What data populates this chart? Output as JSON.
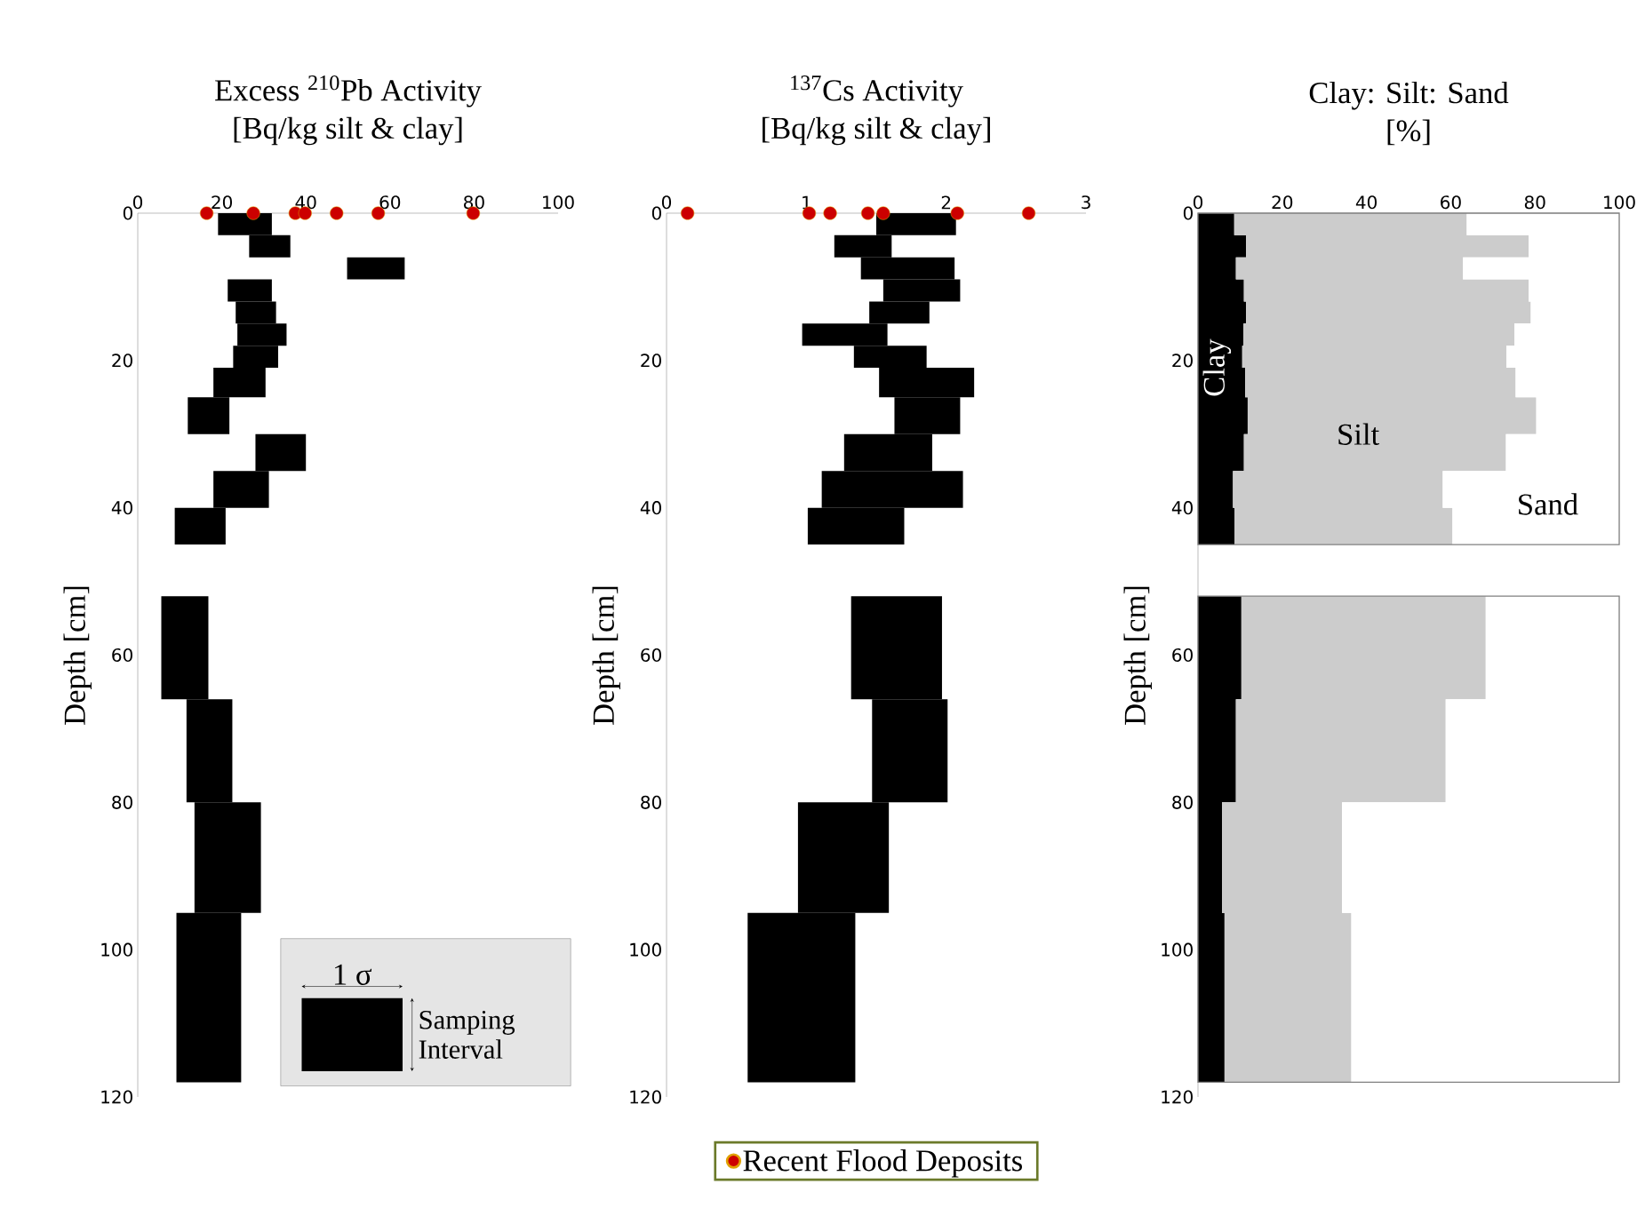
{
  "chart_data": [
    {
      "type": "bar",
      "orientation": "horizontal",
      "title": "Excess $^{210}$Pb Activity",
      "subtitle": "[Bq/kg silt & clay]",
      "ylabel": "Depth [cm]",
      "xlim": [
        0,
        100
      ],
      "ylim": [
        120,
        0
      ],
      "xticks": [
        0,
        20,
        40,
        60,
        80,
        100
      ],
      "yticks": [
        0,
        20,
        40,
        60,
        80,
        100,
        120
      ],
      "annotations": [
        "1 σ",
        "Samping Interval"
      ],
      "series": [
        {
          "color": "#000000",
          "x": [
            1.5,
            4.5,
            7.5,
            10.5,
            13.5,
            16.5,
            19.5,
            23,
            27.5,
            32.5,
            37.5,
            42.5,
            48.5,
            59,
            73,
            87.5,
            106.5
          ],
          "base": [
            19.1,
            26.5,
            49.8,
            21.4,
            23.3,
            23.7,
            22.7,
            18.0,
            11.9,
            28.0,
            18.0,
            8.8,
            null,
            5.6,
            11.6,
            13.5,
            9.2
          ],
          "values": [
            12.8,
            9.8,
            13.7,
            10.5,
            9.6,
            11.7,
            10.7,
            12.4,
            9.9,
            12.0,
            13.2,
            12.1,
            null,
            11.2,
            10.9,
            15.8,
            15.4
          ]
        },
        {
          "type": "scatter",
          "color": "#cc0000",
          "marker": "circle",
          "x": [
            0,
            0,
            0,
            0,
            0,
            0,
            0
          ],
          "values": [
            16.4,
            27.5,
            37.5,
            39.8,
            47.3,
            57.2,
            79.8
          ]
        }
      ]
    },
    {
      "type": "bar",
      "orientation": "horizontal",
      "title": "$^{137}$Cs Activity",
      "subtitle": "[Bq/kg silt & clay]",
      "ylabel": "Depth [cm]",
      "xlim": [
        0,
        3
      ],
      "ylim": [
        120,
        0
      ],
      "xticks": [
        0,
        1,
        2,
        3
      ],
      "yticks": [
        0,
        20,
        40,
        60,
        80,
        100,
        120
      ],
      "legend": "bottom",
      "series": [
        {
          "color": "#000000",
          "x": [
            1.5,
            4.5,
            7.5,
            10.5,
            13.5,
            16.5,
            19.5,
            23,
            27.5,
            32.5,
            37.5,
            42.5,
            48.5,
            59,
            73,
            87.5,
            106.5
          ],
          "base": [
            1.5,
            1.2,
            1.39,
            1.55,
            1.45,
            0.97,
            1.34,
            1.52,
            1.63,
            1.27,
            1.11,
            1.01,
            null,
            1.32,
            1.47,
            0.94,
            0.58
          ],
          "values": [
            0.57,
            0.41,
            0.67,
            0.55,
            0.43,
            0.61,
            0.52,
            0.68,
            0.47,
            0.63,
            1.01,
            0.69,
            null,
            0.65,
            0.54,
            0.65,
            0.77
          ]
        },
        {
          "type": "scatter",
          "name": "Recent Flood Deposits",
          "color": "#cc0000",
          "marker": "circle",
          "x": [
            0,
            0,
            0,
            0,
            0,
            0,
            0
          ],
          "values": [
            0.15,
            1.02,
            1.17,
            1.44,
            1.55,
            2.08,
            2.59
          ]
        }
      ]
    },
    {
      "type": "area",
      "title": "Clay: Silt: Sand",
      "subtitle": "[%]",
      "ylabel": "Depth [cm]",
      "stacked": true,
      "orientation": "horizontal",
      "xlim": [
        0,
        100
      ],
      "ylim": [
        120,
        0
      ],
      "xticks": [
        0,
        20,
        40,
        60,
        80,
        100
      ],
      "yticks": [
        0,
        20,
        40,
        60,
        80,
        100,
        120
      ],
      "x": [
        0,
        3,
        3,
        6,
        6,
        9,
        9,
        12,
        12,
        15,
        15,
        18,
        18,
        21,
        21,
        25,
        25,
        30,
        30,
        35,
        35,
        40,
        40,
        45,
        48.5,
        52,
        66,
        66,
        80,
        80,
        95,
        95,
        118
      ],
      "series": [
        {
          "name": "Clay",
          "color": "#000000",
          "values": [
            8.6,
            8.6,
            11.4,
            11.4,
            9.0,
            9.0,
            10.9,
            10.9,
            11.4,
            11.4,
            10.8,
            10.8,
            10.5,
            10.5,
            11.2,
            11.2,
            11.8,
            11.8,
            10.9,
            10.9,
            8.3,
            8.3,
            8.7,
            8.7,
            null,
            10.3,
            10.3,
            9.0,
            9.0,
            5.7,
            5.7,
            6.3,
            6.3
          ]
        },
        {
          "name": "Silt",
          "color": "#cccccc",
          "values": [
            55.2,
            55.2,
            67.1,
            67.1,
            53.9,
            53.9,
            67.6,
            67.6,
            67.6,
            67.6,
            64.3,
            64.3,
            62.7,
            62.7,
            64.2,
            64.2,
            68.5,
            68.5,
            62.2,
            62.2,
            49.8,
            49.8,
            51.7,
            51.7,
            null,
            58.0,
            58.0,
            49.8,
            49.8,
            28.5,
            28.5,
            30.1,
            30.1
          ]
        },
        {
          "name": "Sand",
          "color": "#ffffff",
          "values": [
            36.2,
            36.2,
            21.5,
            21.5,
            37.1,
            37.1,
            21.5,
            21.5,
            21.0,
            21.0,
            24.9,
            24.9,
            26.8,
            26.8,
            24.6,
            24.6,
            19.7,
            19.7,
            26.9,
            26.9,
            41.9,
            41.9,
            39.6,
            39.6,
            null,
            31.7,
            31.7,
            41.2,
            41.2,
            65.8,
            65.8,
            63.6,
            63.6
          ]
        }
      ]
    }
  ]
}
